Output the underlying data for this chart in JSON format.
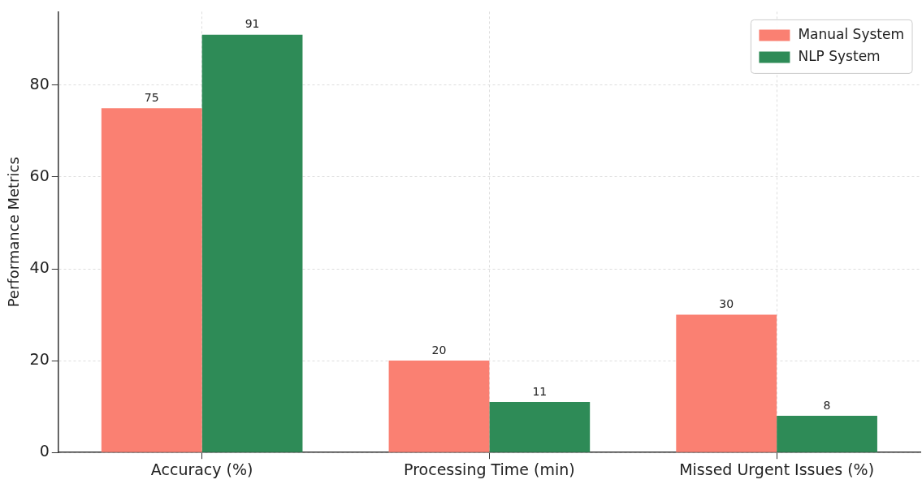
{
  "chart_data": {
    "type": "bar",
    "ylabel": "Performance Metrics",
    "categories": [
      "Accuracy (%)",
      "Processing Time (min)",
      "Missed Urgent Issues (%)"
    ],
    "series": [
      {
        "name": "Manual System",
        "color": "#fa8072",
        "values": [
          75,
          20,
          30
        ]
      },
      {
        "name": "NLP System",
        "color": "#2e8b57",
        "values": [
          91,
          11,
          8
        ]
      }
    ],
    "ylim": [
      0,
      96
    ],
    "yticks": [
      0,
      20,
      40,
      60,
      80
    ],
    "grid": true,
    "legend": "top right",
    "data_labels": true
  }
}
